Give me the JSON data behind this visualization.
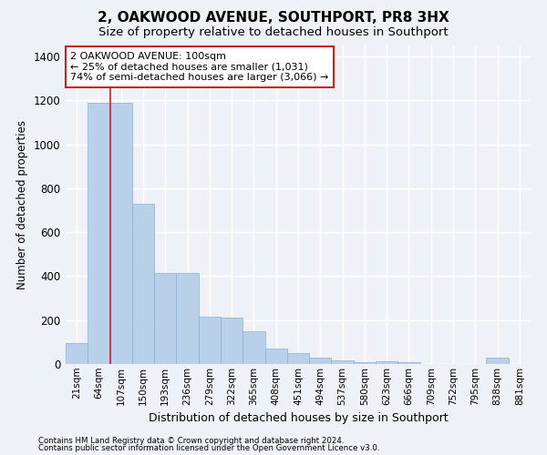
{
  "title": "2, OAKWOOD AVENUE, SOUTHPORT, PR8 3HX",
  "subtitle": "Size of property relative to detached houses in Southport",
  "xlabel": "Distribution of detached houses by size in Southport",
  "ylabel": "Number of detached properties",
  "footer_line1": "Contains HM Land Registry data © Crown copyright and database right 2024.",
  "footer_line2": "Contains public sector information licensed under the Open Government Licence v3.0.",
  "bar_labels": [
    "21sqm",
    "64sqm",
    "107sqm",
    "150sqm",
    "193sqm",
    "236sqm",
    "279sqm",
    "322sqm",
    "365sqm",
    "408sqm",
    "451sqm",
    "494sqm",
    "537sqm",
    "580sqm",
    "623sqm",
    "666sqm",
    "709sqm",
    "752sqm",
    "795sqm",
    "838sqm",
    "881sqm"
  ],
  "bar_values": [
    95,
    1190,
    1190,
    730,
    415,
    415,
    215,
    210,
    148,
    70,
    48,
    28,
    18,
    10,
    14,
    10,
    0,
    0,
    0,
    28,
    0
  ],
  "bar_color": "#b8d0e8",
  "bar_edge_color": "#8ab0d0",
  "vline_color": "#cc2222",
  "annotation_text": "2 OAKWOOD AVENUE: 100sqm\n← 25% of detached houses are smaller (1,031)\n74% of semi-detached houses are larger (3,066) →",
  "annotation_box_color": "white",
  "annotation_box_edge": "#cc2222",
  "ylim": [
    0,
    1450
  ],
  "yticks": [
    0,
    200,
    400,
    600,
    800,
    1000,
    1200,
    1400
  ],
  "background_color": "#eef2f8",
  "plot_background": "#eef2f8",
  "grid_color": "white",
  "title_fontsize": 11,
  "subtitle_fontsize": 9.5
}
